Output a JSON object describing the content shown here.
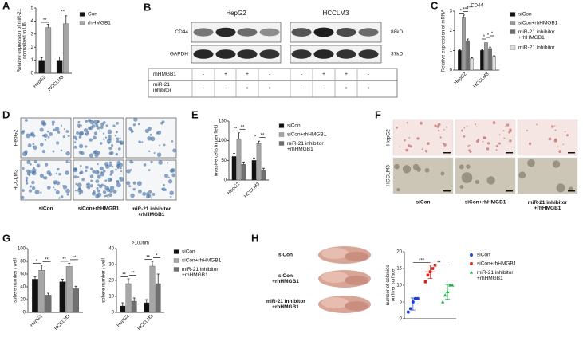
{
  "panel_letters": [
    "A",
    "B",
    "C",
    "D",
    "E",
    "F",
    "G",
    "H"
  ],
  "blot": {
    "cell_lines": [
      "HepG2",
      "HCCLM3"
    ],
    "proteins": [
      "CD44",
      "GAPDH"
    ],
    "sizes": [
      "88kD",
      "37kD"
    ],
    "treatments": [
      {
        "name": "rhHMGB1",
        "signs": [
          "-",
          "+",
          "+",
          "-",
          "-",
          "+",
          "+",
          "-"
        ]
      },
      {
        "name": "miR-21\ninhibitor",
        "signs": [
          "-",
          "-",
          "+",
          "+",
          "-",
          "-",
          "+",
          "+"
        ]
      }
    ]
  },
  "invasion": {
    "rows": [
      "HepG2",
      "HCCLM3"
    ],
    "columns": [
      "siCon",
      "siCon+rhHMGB1",
      "miR-21 inhibitor\n+rhHMGB1"
    ]
  },
  "sphere": {
    "rows": [
      "HepG2",
      "HCCLM3"
    ],
    "columns": [
      "siCon",
      "siCon+rhHMGB1",
      "miR-21 inhibitor\n+rhHMGB1"
    ]
  },
  "mouse": {
    "rows": [
      "siCon",
      "siCon\n+rhHMGB1",
      "miR-21 inhibitor\n+rhHMGB1"
    ]
  },
  "chart_data": [
    {
      "type": "bar",
      "ylabel": "Relative expression of miR-21\nnormalized to U6",
      "categories": [
        "HepG2",
        "HCCLM3"
      ],
      "series": [
        {
          "name": "Con",
          "color": "#111111",
          "values": [
            1,
            1
          ],
          "errors": [
            0.2,
            0.25
          ]
        },
        {
          "name": "rhHMGB1",
          "color": "#a6a6a6",
          "values": [
            3.5,
            3.8
          ],
          "errors": [
            0.25,
            0.6
          ]
        }
      ],
      "ylim": [
        0,
        5
      ],
      "yticks": [
        0,
        1,
        2,
        3,
        4,
        5
      ],
      "annotations": [
        "**",
        "**"
      ]
    },
    {
      "type": "bar",
      "title": "CD44",
      "ylabel": "Relative expression of mRNA",
      "categories": [
        "HepG2",
        "HCCLM3"
      ],
      "series": [
        {
          "name": "siCon",
          "color": "#111111",
          "values": [
            1,
            1
          ],
          "errors": [
            0.05,
            0.05
          ]
        },
        {
          "name": "siCon+rhHMGB1",
          "color": "#9a9a9a",
          "values": [
            2.7,
            1.4
          ],
          "errors": [
            0.1,
            0.08
          ]
        },
        {
          "name": "miR-21 inhibitor\n+rhHMGB1",
          "color": "#6e6e6e",
          "values": [
            1.5,
            1.1
          ],
          "errors": [
            0.08,
            0.07
          ]
        },
        {
          "name": "miR-21 inhibitor",
          "color": "#dddddd",
          "values": [
            0.6,
            0.7
          ],
          "errors": [
            0.03,
            0.03
          ]
        }
      ],
      "ylim": [
        0,
        3
      ],
      "yticks": [
        0,
        1,
        2,
        3
      ],
      "annotations": [
        "**",
        "***",
        "***",
        "*",
        "*",
        "*"
      ]
    },
    {
      "type": "bar",
      "ylabel": "invasive cells in per field",
      "categories": [
        "HepG2",
        "HCCLM3"
      ],
      "series": [
        {
          "name": "siCon",
          "color": "#111111",
          "values": [
            60,
            50
          ],
          "errors": [
            8,
            6
          ]
        },
        {
          "name": "siCon+rhHMGB1",
          "color": "#a6a6a6",
          "values": [
            105,
            93
          ],
          "errors": [
            15,
            6
          ]
        },
        {
          "name": "miR-21 inhibitor\n+rhHMGB1",
          "color": "#707070",
          "values": [
            40,
            25
          ],
          "errors": [
            6,
            5
          ]
        }
      ],
      "ylim": [
        0,
        150
      ],
      "yticks": [
        0,
        50,
        100,
        150
      ],
      "annotations": [
        "**",
        "**",
        "*",
        "**"
      ]
    },
    {
      "type": "bar",
      "ylabel": "sphere number / well",
      "categories": [
        "HepG2",
        "HCCLM3"
      ],
      "series": [
        {
          "name": "siCon",
          "color": "#111111",
          "values": [
            52,
            48
          ],
          "errors": [
            4,
            4
          ]
        },
        {
          "name": "siCon+rhHMGB1",
          "color": "#a6a6a6",
          "values": [
            66,
            72
          ],
          "errors": [
            8,
            5
          ]
        },
        {
          "name": "miR-21 inhibitor\n+rhHMGB1",
          "color": "#707070",
          "values": [
            27,
            37
          ],
          "errors": [
            3,
            4
          ]
        }
      ],
      "ylim": [
        0,
        100
      ],
      "yticks": [
        0,
        20,
        40,
        60,
        80,
        100
      ],
      "annotations": [
        "*",
        "**",
        "**",
        "**"
      ]
    },
    {
      "type": "bar",
      "title": ">100nm",
      "ylabel": "sphere number / well",
      "categories": [
        "HepG2",
        "HCCLM3"
      ],
      "series": [
        {
          "color": "#111111",
          "values": [
            4,
            6
          ],
          "errors": [
            2,
            2
          ]
        },
        {
          "color": "#a6a6a6",
          "values": [
            18,
            29
          ],
          "errors": [
            3,
            3
          ]
        },
        {
          "color": "#707070",
          "values": [
            7,
            18
          ],
          "errors": [
            2,
            6
          ]
        }
      ],
      "ylim": [
        0,
        40
      ],
      "yticks": [
        0,
        10,
        20,
        30,
        40
      ],
      "annotations": [
        "**",
        "**",
        "**",
        "*"
      ]
    },
    {
      "type": "dot",
      "ylabel": "number of colonies\non liver surface",
      "series": [
        {
          "name": "siCon",
          "color": "#1f3fd6",
          "marker": "circle",
          "values": [
            2,
            3,
            5,
            6,
            6
          ],
          "mean": 4.4,
          "sd": 1.8
        },
        {
          "name": "siCon+rhHMGB1",
          "color": "#e0201b",
          "marker": "square",
          "values": [
            11,
            13,
            14,
            15,
            16
          ],
          "mean": 14,
          "sd": 2
        },
        {
          "name": "miR-21 inhibitor\n+rhHMGB1",
          "color": "#22b14c",
          "marker": "triangle",
          "values": [
            5,
            7,
            8,
            10,
            10
          ],
          "mean": 8,
          "sd": 2.2
        }
      ],
      "ylim": [
        0,
        20
      ],
      "yticks": [
        0,
        5,
        10,
        15,
        20
      ],
      "annotations": [
        "***",
        "**"
      ]
    }
  ]
}
